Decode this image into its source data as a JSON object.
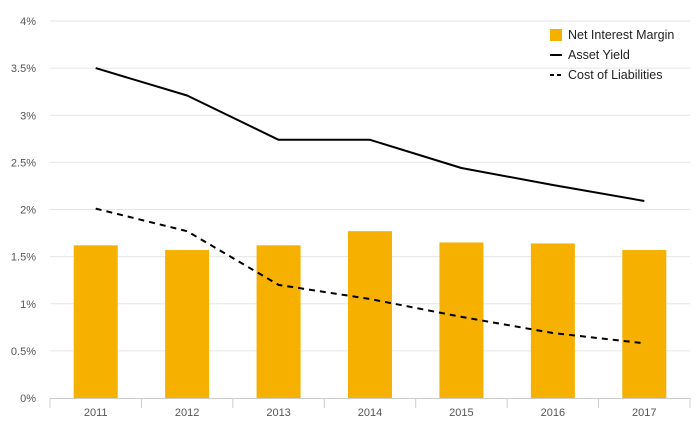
{
  "chart_data": {
    "type": "bar",
    "categories": [
      "2011",
      "2012",
      "2013",
      "2014",
      "2015",
      "2016",
      "2017"
    ],
    "series": [
      {
        "name": "Net Interest Margin",
        "type": "bar",
        "color": "#F5B000",
        "values": [
          1.62,
          1.57,
          1.62,
          1.77,
          1.65,
          1.64,
          1.57
        ]
      },
      {
        "name": "Asset Yield",
        "type": "line",
        "color": "#000000",
        "dash": "solid",
        "values": [
          3.5,
          3.21,
          2.74,
          2.74,
          2.44,
          2.26,
          2.09
        ]
      },
      {
        "name": "Cost of Liabilities",
        "type": "line",
        "color": "#000000",
        "dash": "dashed",
        "values": [
          2.01,
          1.77,
          1.2,
          1.05,
          0.86,
          0.69,
          0.58
        ]
      }
    ],
    "y_ticks": [
      "0%",
      "0.5%",
      "1%",
      "1.5%",
      "2%",
      "2.5%",
      "3%",
      "3.5%",
      "4%"
    ],
    "ylim": [
      0,
      4
    ],
    "grid": true,
    "legend_position": "top-right"
  }
}
